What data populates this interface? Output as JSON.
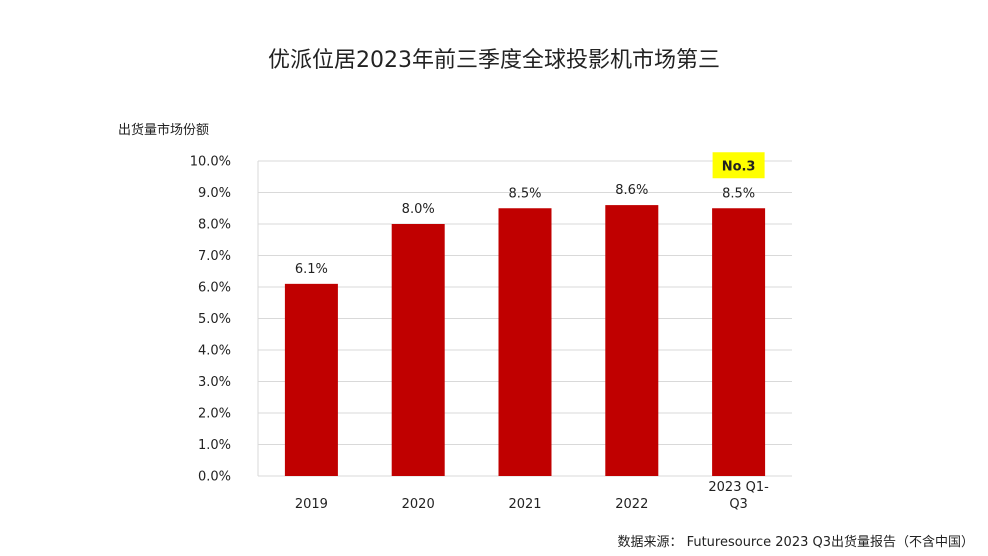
{
  "chart_data": {
    "type": "bar",
    "title": "优派位居2023年前三季度全球投影机市场第三",
    "ylabel": "出货量市场份额",
    "xlabel": "",
    "categories": [
      "2019",
      "2020",
      "2021",
      "2022",
      "2023 Q1-\nQ3"
    ],
    "values": [
      6.1,
      8.0,
      8.5,
      8.6,
      8.5
    ],
    "data_labels": [
      "6.1%",
      "8.0%",
      "8.5%",
      "8.6%",
      "8.5%"
    ],
    "ylim": [
      0,
      10
    ],
    "yticks": [
      "0.0%",
      "1.0%",
      "2.0%",
      "3.0%",
      "4.0%",
      "5.0%",
      "6.0%",
      "7.0%",
      "8.0%",
      "9.0%",
      "10.0%"
    ],
    "grid": true,
    "annotation": {
      "text": "No.3",
      "category_index": 4
    },
    "bar_color": "#c00000",
    "highlight_color": "#ffff00",
    "grid_color": "#d9d9d9"
  },
  "footer": {
    "source": "数据来源： Futuresource 2023 Q3出货量报告（不含中国）"
  }
}
